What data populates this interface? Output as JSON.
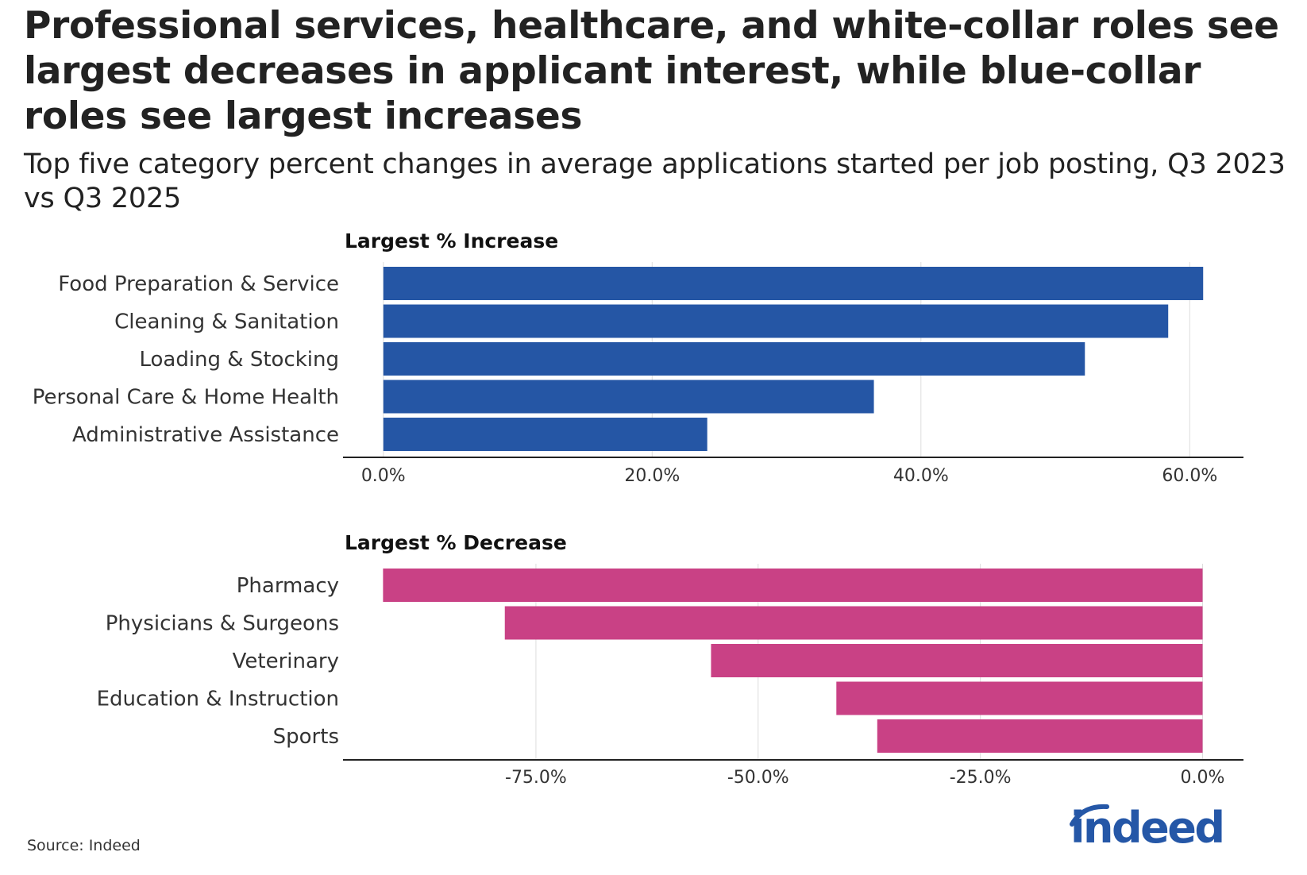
{
  "title": "Professional services, healthcare, and white-collar roles see largest decreases in applicant interest, while blue-collar roles see largest increases",
  "subtitle": "Top five category percent changes in average applications started per job posting, Q3 2023 vs Q3 2025",
  "source": "Source: Indeed",
  "logo": "indeed",
  "colors": {
    "increase": "#2556a5",
    "decrease": "#c94185",
    "grid": "#dddddd",
    "axis": "#222222"
  },
  "chart_data": [
    {
      "type": "bar",
      "orientation": "horizontal",
      "title": "Largest % Increase",
      "categories": [
        "Food Preparation & Service",
        "Cleaning & Sanitation",
        "Loading & Stocking",
        "Personal Care & Home Health",
        "Administrative Assistance"
      ],
      "values": [
        61.0,
        58.4,
        52.2,
        36.5,
        24.1
      ],
      "xlim": [
        -3,
        64
      ],
      "ticks": [
        0,
        20,
        40,
        60
      ],
      "tick_labels": [
        "0.0%",
        "20.0%",
        "40.0%",
        "60.0%"
      ],
      "grid": true,
      "color": "#2556a5"
    },
    {
      "type": "bar",
      "orientation": "horizontal",
      "title": "Largest % Decrease",
      "categories": [
        "Pharmacy",
        "Physicians & Surgeons",
        "Veterinary",
        "Education & Instruction",
        "Sports"
      ],
      "values": [
        -92.2,
        -78.5,
        -55.3,
        -41.2,
        -36.6
      ],
      "xlim": [
        -96.7,
        4.6
      ],
      "ticks": [
        -75,
        -50,
        -25,
        0
      ],
      "tick_labels": [
        "-75.0%",
        "-50.0%",
        "-25.0%",
        "0.0%"
      ],
      "grid": true,
      "color": "#c94185"
    }
  ]
}
